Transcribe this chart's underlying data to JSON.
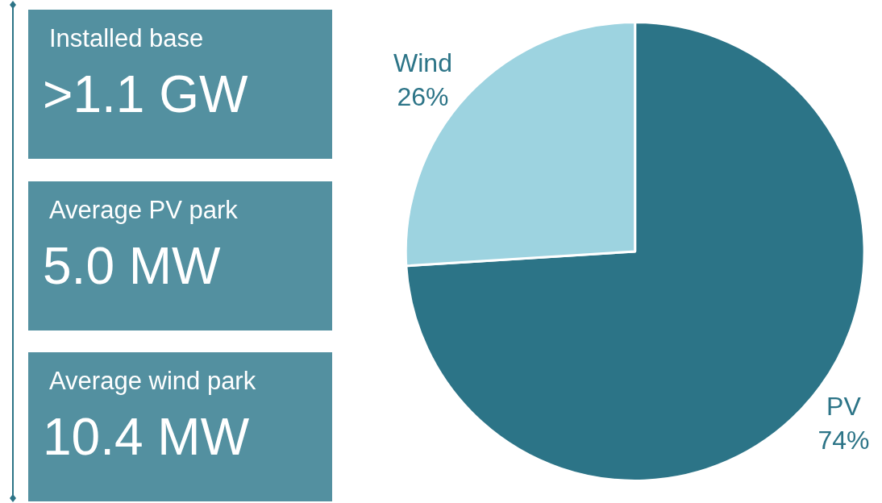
{
  "chart_data": [
    {
      "type": "other",
      "annotations": [
        "Installed base",
        ">1.1 GW",
        "Average PV park",
        "5.0 MW",
        "Average wind park",
        "10.4 MW"
      ],
      "color": "#5390a0"
    },
    {
      "type": "pie",
      "categories": [
        "PV",
        "Wind"
      ],
      "values": [
        74,
        26
      ],
      "value_labels": [
        "74%",
        "26%"
      ],
      "colors": [
        "#2c7487",
        "#9dd3e0"
      ],
      "legend": false
    }
  ]
}
